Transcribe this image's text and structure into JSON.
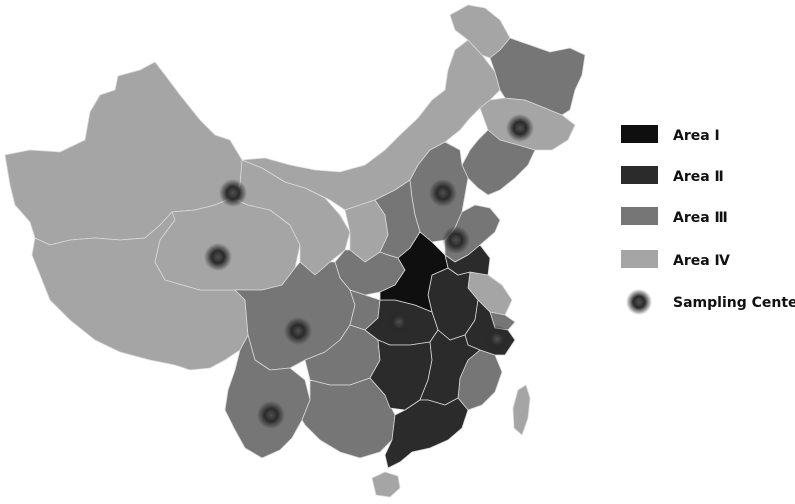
{
  "colors": {
    "area1": "#0f0f0f",
    "area2": "#2b2b2b",
    "area3": "#767676",
    "area4": "#a5a5a5",
    "border": "#d9d9d9",
    "marker": "#2a2a2a"
  },
  "legend": {
    "items": [
      {
        "label": "Area Ⅰ",
        "swatch": "area1"
      },
      {
        "label": "Area Ⅱ",
        "swatch": "area2"
      },
      {
        "label": "Area Ⅲ",
        "swatch": "area3"
      },
      {
        "label": "Area Ⅳ",
        "swatch": "area4"
      }
    ],
    "marker_label": "Sampling Center"
  },
  "map": {
    "sampling_center_count": 9
  }
}
